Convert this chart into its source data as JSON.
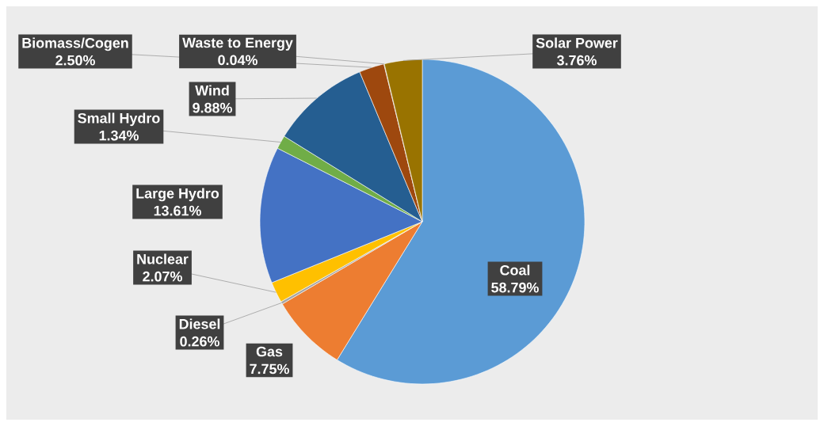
{
  "chart_data": {
    "type": "pie",
    "categories": [
      "Coal",
      "Gas",
      "Diesel",
      "Nuclear",
      "Large Hydro",
      "Small Hydro",
      "Wind",
      "Biomass/Cogen",
      "Waste to Energy",
      "Solar Power"
    ],
    "values": [
      58.79,
      7.75,
      0.26,
      2.07,
      13.61,
      1.34,
      9.88,
      2.5,
      0.04,
      3.76
    ],
    "colors": [
      "#5b9bd5",
      "#ed7d31",
      "#a5a5a5",
      "#ffc000",
      "#4472c4",
      "#70ad47",
      "#255e91",
      "#9e480e",
      "#636363",
      "#997300"
    ],
    "value_labels": [
      "58.79%",
      "7.75%",
      "0.26%",
      "2.07%",
      "13.61%",
      "1.34%",
      "9.88%",
      "2.50%",
      "0.04%",
      "3.76%"
    ]
  }
}
